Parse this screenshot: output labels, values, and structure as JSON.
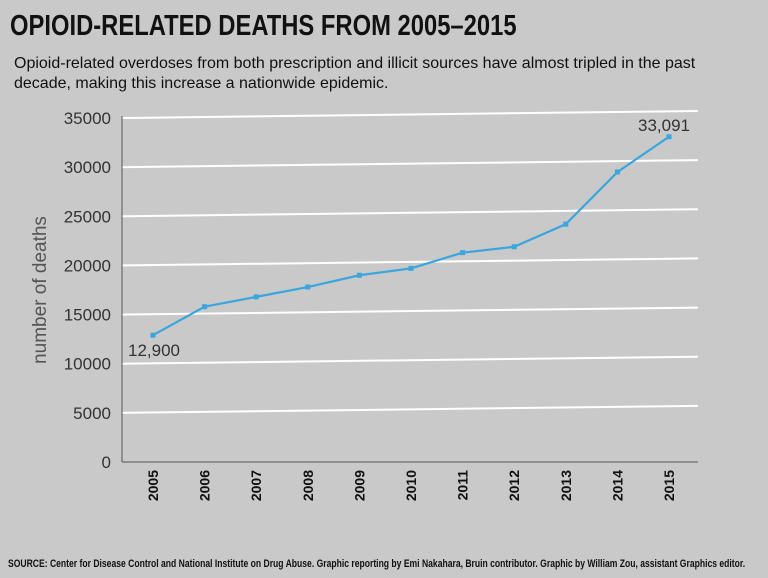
{
  "header": {
    "title": "OPIOID-RELATED DEATHS FROM 2005–2015",
    "subtitle": "Opioid-related overdoses from both prescription and illicit sources have almost tripled in the past decade, making this increase a nationwide epidemic."
  },
  "footer": {
    "source": "SOURCE: Center for Disease Control and National Institute on Drug Abuse. Graphic reporting by Emi Nakahara, Bruin contributor. Graphic by William Zou, assistant Graphics editor."
  },
  "colors": {
    "line": "#3aa6dd",
    "grid": "#ffffff",
    "axis": "#555555"
  },
  "chart_data": {
    "type": "line",
    "title": "OPIOID-RELATED DEATHS FROM 2005–2015",
    "xlabel": "",
    "ylabel": "number of deaths",
    "categories": [
      "2005",
      "2006",
      "2007",
      "2008",
      "2009",
      "2010",
      "2011",
      "2012",
      "2013",
      "2014",
      "2015"
    ],
    "series": [
      {
        "name": "Opioid-related deaths",
        "values": [
          12900,
          15800,
          16800,
          17800,
          19000,
          19700,
          21300,
          21900,
          24200,
          29500,
          33091
        ]
      }
    ],
    "ylim": [
      0,
      35000
    ],
    "yticks": [
      0,
      5000,
      10000,
      15000,
      20000,
      25000,
      30000,
      35000
    ],
    "grid": true,
    "annotations": [
      {
        "index": 0,
        "text": "12,900"
      },
      {
        "index": 10,
        "text": "33,091"
      }
    ]
  }
}
